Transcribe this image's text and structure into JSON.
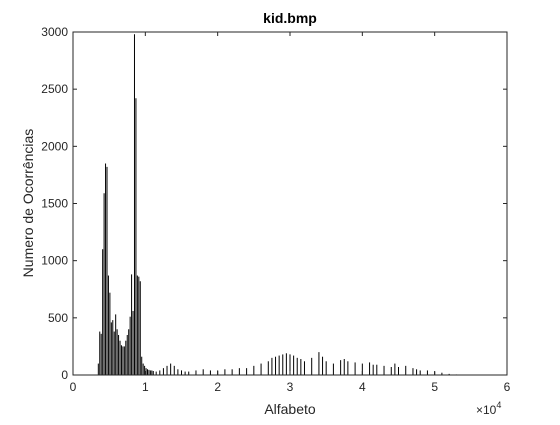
{
  "chart_data": {
    "type": "bar",
    "title": "kid.bmp",
    "xlabel": "Alfabeto",
    "ylabel": "Numero de Ocorrências",
    "xlim": [
      0,
      60000
    ],
    "ylim": [
      0,
      3000
    ],
    "x_ticks": [
      0,
      10000,
      20000,
      30000,
      40000,
      50000,
      60000
    ],
    "x_tick_labels": [
      "0",
      "1",
      "2",
      "3",
      "4",
      "5",
      "6"
    ],
    "x_exponent_base": "×10",
    "x_exponent_power": "4",
    "y_ticks": [
      0,
      500,
      1000,
      1500,
      2000,
      2500,
      3000
    ],
    "y_tick_labels": [
      "0",
      "500",
      "1000",
      "1500",
      "2000",
      "2500",
      "3000"
    ],
    "grid": false,
    "box": true,
    "bar_color": "#000000",
    "series": [
      {
        "x": [
          3500,
          3700,
          3900,
          4100,
          4300,
          4500,
          4700,
          4900,
          5100,
          5300,
          5500,
          5700,
          5900,
          6100,
          6300,
          6500,
          6700,
          6900,
          7100,
          7300,
          7500,
          7700,
          7900,
          8100,
          8300,
          8500,
          8700,
          8900,
          9100,
          9300,
          9500,
          9700,
          9900,
          10100,
          10300,
          10500,
          10700,
          10900,
          11100,
          11500,
          12000,
          12500,
          13000,
          13500,
          14000,
          14500,
          15000,
          15500,
          16000,
          17000,
          18000,
          19000,
          20000,
          21000,
          22000,
          23000,
          24000,
          25000,
          26000,
          27000,
          27500,
          28000,
          28500,
          29000,
          29500,
          30000,
          30500,
          31000,
          31500,
          32000,
          33000,
          34000,
          34500,
          35000,
          36000,
          37000,
          37500,
          38000,
          39000,
          40000,
          41000,
          41500,
          42000,
          43000,
          44000,
          44500,
          45000,
          46000,
          47000,
          47500,
          48000,
          49000,
          50000,
          51000,
          52000,
          53000
        ],
        "values": [
          100,
          380,
          360,
          1100,
          1590,
          1850,
          1820,
          870,
          720,
          460,
          480,
          380,
          530,
          400,
          350,
          300,
          260,
          250,
          250,
          300,
          350,
          400,
          510,
          880,
          560,
          2980,
          2420,
          870,
          860,
          820,
          160,
          100,
          80,
          60,
          50,
          45,
          40,
          40,
          35,
          30,
          40,
          60,
          80,
          100,
          80,
          50,
          40,
          30,
          30,
          40,
          50,
          40,
          40,
          50,
          50,
          60,
          60,
          80,
          100,
          120,
          150,
          160,
          170,
          180,
          190,
          180,
          170,
          150,
          140,
          120,
          150,
          200,
          160,
          120,
          100,
          130,
          140,
          120,
          110,
          100,
          110,
          90,
          90,
          80,
          70,
          100,
          70,
          80,
          60,
          50,
          40,
          40,
          30,
          20,
          10,
          5
        ]
      }
    ]
  }
}
